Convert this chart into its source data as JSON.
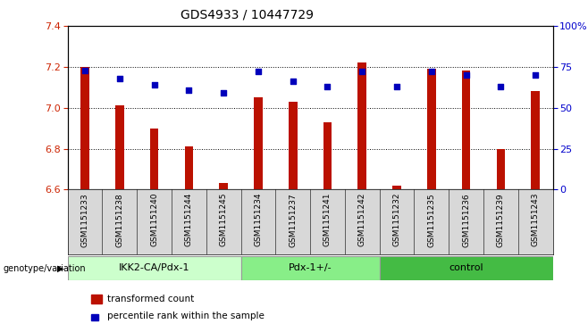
{
  "title": "GDS4933 / 10447729",
  "samples": [
    "GSM1151233",
    "GSM1151238",
    "GSM1151240",
    "GSM1151244",
    "GSM1151245",
    "GSM1151234",
    "GSM1151237",
    "GSM1151241",
    "GSM1151242",
    "GSM1151232",
    "GSM1151235",
    "GSM1151236",
    "GSM1151239",
    "GSM1151243"
  ],
  "bar_values": [
    7.2,
    7.01,
    6.9,
    6.81,
    6.63,
    7.05,
    7.03,
    6.93,
    7.22,
    6.62,
    7.19,
    7.18,
    6.8,
    7.08
  ],
  "dot_percentiles": [
    73,
    68,
    64,
    61,
    59,
    72,
    66,
    63,
    72,
    63,
    72,
    70,
    63,
    70
  ],
  "ylim_left": [
    6.6,
    7.4
  ],
  "ylim_right": [
    0,
    100
  ],
  "yticks_left": [
    6.6,
    6.8,
    7.0,
    7.2,
    7.4
  ],
  "yticks_right": [
    0,
    25,
    50,
    75,
    100
  ],
  "ytick_labels_right": [
    "0",
    "25",
    "50",
    "75",
    "100%"
  ],
  "groups": [
    {
      "label": "IKK2-CA/Pdx-1",
      "start": 0,
      "end": 5
    },
    {
      "label": "Pdx-1+/-",
      "start": 5,
      "end": 9
    },
    {
      "label": "control",
      "start": 9,
      "end": 14
    }
  ],
  "group_colors": [
    "#ccffcc",
    "#88ee88",
    "#44bb44"
  ],
  "bar_color": "#bb1100",
  "dot_color": "#0000bb",
  "bar_bottom": 6.6,
  "genotype_label": "genotype/variation",
  "legend_bar_label": "transformed count",
  "legend_dot_label": "percentile rank within the sample",
  "bg_color": "#ffffff",
  "plot_bg": "#ffffff",
  "tick_color_left": "#cc2200",
  "tick_color_right": "#0000cc",
  "label_bg": "#d8d8d8"
}
